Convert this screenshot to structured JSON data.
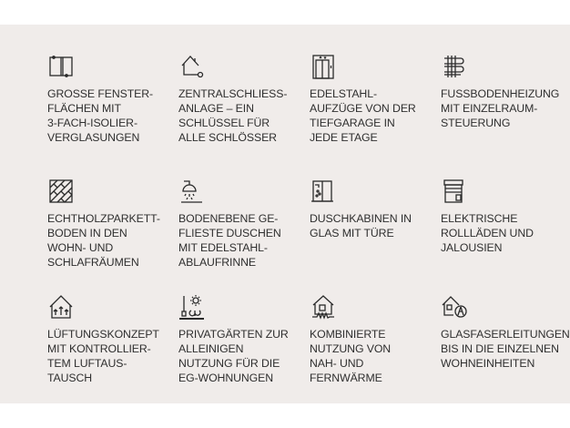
{
  "features": [
    {
      "icon": "window-icon",
      "text": "GROSSE FENSTER-\nFLÄCHEN MIT\n3-FACH-ISOLIER-\nVERGLASUNGEN"
    },
    {
      "icon": "house-key-icon",
      "text": "ZENTRALSCHLIESS-\nANLAGE – EIN\nSCHLÜSSEL FÜR\nALLE SCHLÖSSER"
    },
    {
      "icon": "elevator-icon",
      "text": "EDELSTAHL-\nAUFZÜGE VON DER\nTIEFGARAGE IN\nJEDE ETAGE"
    },
    {
      "icon": "floor-heating-icon",
      "text": "FUSSBODENHEIZUNG\nMIT EINZELRAUM-\nSTEUERUNG"
    },
    {
      "icon": "parquet-icon",
      "text": "ECHTHOLZPARKETT-\nBODEN IN DEN\nWOHN- UND\nSCHLAFRÄUMEN"
    },
    {
      "icon": "shower-icon",
      "text": "BODENEBENE GE-\nFLIESTE DUSCHEN\nMIT EDELSTAHL-\nABLAUFRINNE"
    },
    {
      "icon": "shower-cabin-icon",
      "text": "DUSCHKABINEN IN\nGLAS MIT TÜRE"
    },
    {
      "icon": "roller-shutter-icon",
      "text": "ELEKTRISCHE\nROLLLÄDEN UND\nJALOUSIEN"
    },
    {
      "icon": "ventilation-house-icon",
      "text": "LÜFTUNGSKONZEPT\nMIT KONTROLLIER-\nTEM LUFTAUS-\nTAUSCH"
    },
    {
      "icon": "garden-icon",
      "text": "PRIVATGÄRTEN ZUR\nALLEINIGEN\nNUTZUNG FÜR DIE\nEG-WOHNUNGEN"
    },
    {
      "icon": "district-heating-icon",
      "text": "KOMBINIERTE\nNUTZUNG VON\nNAH- UND\nFERNWÄRME"
    },
    {
      "icon": "fiber-optic-icon",
      "text": "GLASFASERLEITUNGEN\nBIS IN DIE EINZELNEN\nWOHNEINHEITEN"
    }
  ]
}
